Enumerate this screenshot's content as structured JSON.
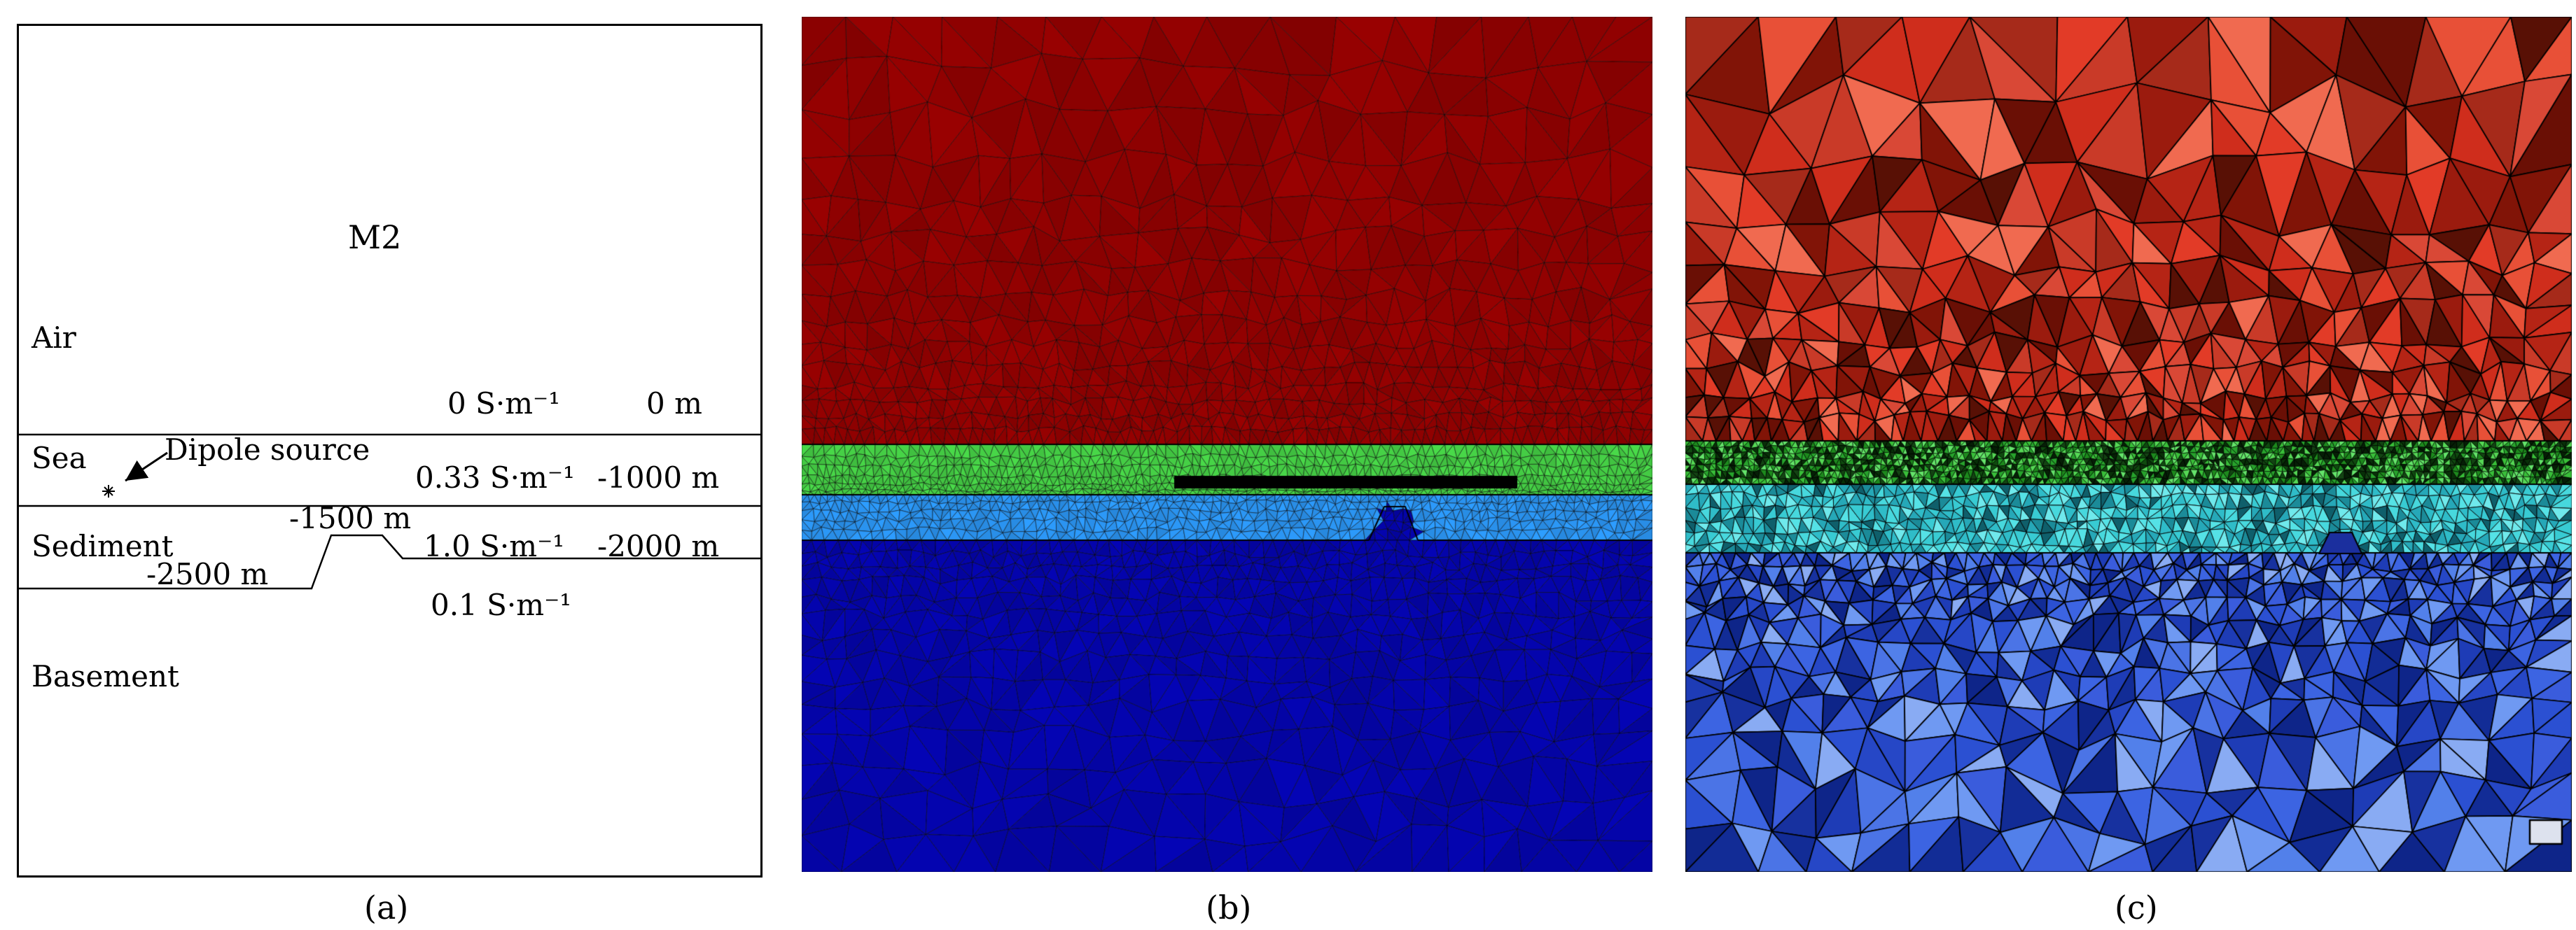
{
  "figure": {
    "panel_a": {
      "caption": "(a)",
      "model_name": "M2",
      "source_label": "Dipole source",
      "layer_names": {
        "air": "Air",
        "sea": "Sea",
        "sediment": "Sediment",
        "basement": "Basement"
      },
      "conductivities": {
        "air": "0 S·m⁻¹",
        "sea": "0.33 S·m⁻¹",
        "sediment": "1.0 S·m⁻¹",
        "basement": "0.1 S·m⁻¹"
      },
      "depths": {
        "sea_surface": "0 m",
        "seafloor": "-1000 m",
        "bump_top": "-1500 m",
        "basement_top": "-2000 m",
        "basement_deep": "-2500 m"
      }
    },
    "panel_b": {
      "caption": "(b)",
      "colors": {
        "air": "#8e0101",
        "sea": "#44cb44",
        "sediment": "#2a92ee",
        "basement": "#0404a8"
      }
    },
    "panel_c": {
      "caption": "(c)",
      "palettes": {
        "red": [
          "#e23b27",
          "#cf2d1c",
          "#b52415",
          "#9b1b0e",
          "#811407",
          "#e85037",
          "#6a0f05",
          "#c93a28",
          "#f06a50",
          "#a62a1a",
          "#581005",
          "#d94836"
        ],
        "green": [
          "#39bf39",
          "#55d855",
          "#1d8a1d",
          "#0f4a0f",
          "#083008",
          "#27a32c",
          "#64e46a",
          "#061f06",
          "#134413"
        ],
        "cyan": [
          "#38cbd3",
          "#55e2e6",
          "#26a8b8",
          "#6fe9ec",
          "#1b8b99",
          "#0f5f6b",
          "#2fbcc8",
          "#47d8dd"
        ],
        "blue": [
          "#3c64e2",
          "#2b50d2",
          "#1e3cb6",
          "#5280ea",
          "#6f99f2",
          "#17319f",
          "#2647c6",
          "#0e2589",
          "#3a5cdc",
          "#89abf3",
          "#122c96",
          "#4b74e6"
        ]
      }
    }
  }
}
